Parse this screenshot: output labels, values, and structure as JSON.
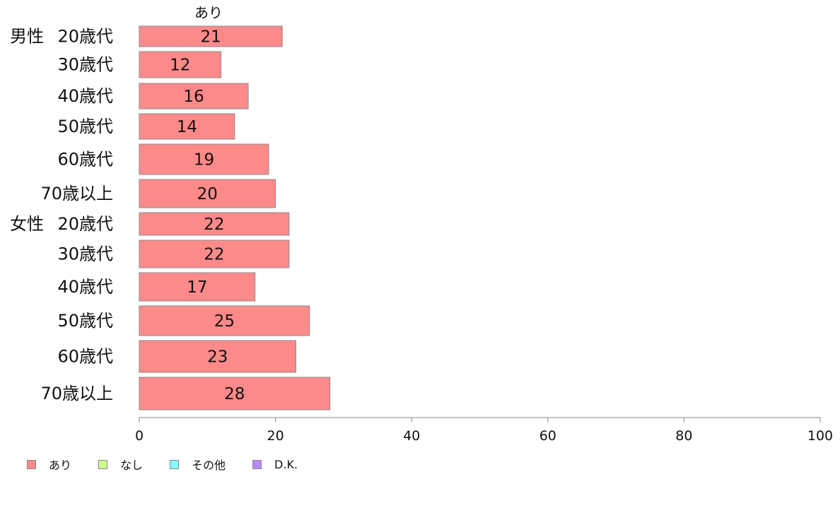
{
  "chart_data": {
    "type": "bar",
    "orientation": "horizontal",
    "series_title": "あり",
    "groups": [
      "男性",
      "女性"
    ],
    "categories": [
      "20歳代",
      "30歳代",
      "40歳代",
      "50歳代",
      "60歳代",
      "70歳以上",
      "20歳代",
      "30歳代",
      "40歳代",
      "50歳代",
      "60歳代",
      "70歳以上"
    ],
    "category_groups": [
      0,
      0,
      0,
      0,
      0,
      0,
      1,
      1,
      1,
      1,
      1,
      1
    ],
    "series": [
      {
        "name": "あり",
        "color": "#ff8a8a",
        "values": [
          21,
          12,
          16,
          14,
          19,
          20,
          22,
          22,
          17,
          25,
          23,
          28
        ]
      }
    ],
    "xlim": [
      0,
      100
    ],
    "xticks": [
      0,
      20,
      40,
      60,
      80,
      100
    ],
    "legend_position": "bottom-left",
    "grid": false
  },
  "legend": [
    {
      "label": "あり",
      "color": "#ff8a8a"
    },
    {
      "label": "なし",
      "color": "#ccff88"
    },
    {
      "label": "その他",
      "color": "#88ffff"
    },
    {
      "label": "D.K.",
      "color": "#b788ff"
    }
  ]
}
